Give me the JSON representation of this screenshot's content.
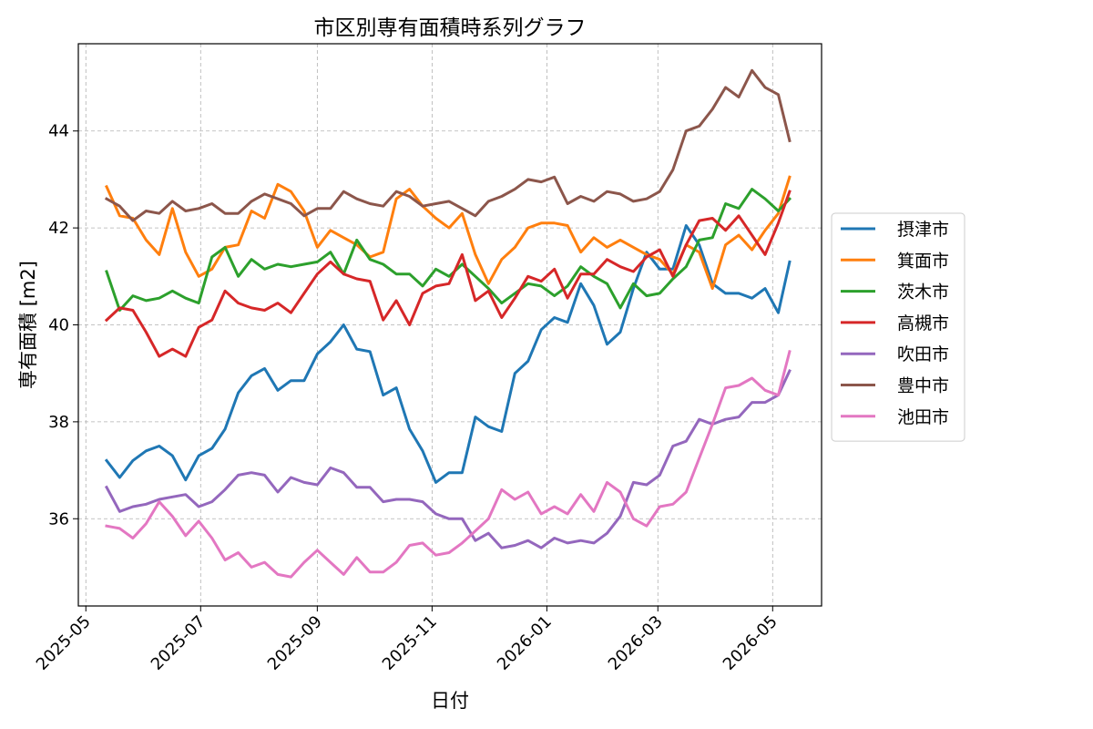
{
  "chart_data": {
    "type": "line",
    "title": "市区別専有面積時系列グラフ",
    "xlabel": "日付",
    "ylabel": "専有面積 [m2]",
    "xlim": [
      "2025-04-27",
      "2026-05-27"
    ],
    "ylim": [
      34.2,
      45.8
    ],
    "x_ticks": [
      "2025-05-01",
      "2025-07-01",
      "2025-09-01",
      "2025-11-01",
      "2026-01-01",
      "2026-03-01",
      "2026-05-01"
    ],
    "x_tick_labels": [
      "2025-05",
      "2025-07",
      "2025-09",
      "2025-11",
      "2026-01",
      "2026-03",
      "2026-05"
    ],
    "y_ticks": [
      36,
      38,
      40,
      42,
      44
    ],
    "y_tick_labels": [
      "36",
      "38",
      "40",
      "42",
      "44"
    ],
    "grid": true,
    "legend_position": "center-right-outside",
    "x_start": "2025-05-12",
    "x_step_days": 7,
    "x_end": "2026-05-10",
    "series": [
      {
        "name": "摂津市",
        "color": "#1f77b4",
        "values": [
          37.2,
          36.85,
          37.2,
          37.4,
          37.5,
          37.3,
          36.8,
          37.3,
          37.45,
          37.85,
          38.6,
          38.95,
          39.1,
          38.65,
          38.85,
          38.85,
          39.4,
          39.65,
          40.0,
          39.5,
          39.45,
          38.55,
          38.7,
          37.85,
          37.4,
          36.75,
          36.95,
          36.95,
          38.1,
          37.9,
          37.8,
          39.0,
          39.25,
          39.9,
          40.15,
          40.05,
          40.85,
          40.4,
          39.6,
          39.85,
          40.75,
          41.5,
          41.15,
          41.15,
          42.05,
          41.65,
          40.85,
          40.65,
          40.65,
          40.55,
          40.75,
          40.25,
          41.3
        ]
      },
      {
        "name": "箕面市",
        "color": "#ff7f0e",
        "values": [
          42.85,
          42.25,
          42.2,
          41.75,
          41.45,
          42.4,
          41.5,
          41.0,
          41.15,
          41.6,
          41.65,
          42.35,
          42.2,
          42.9,
          42.75,
          42.35,
          41.6,
          41.95,
          41.8,
          41.65,
          41.4,
          41.5,
          42.6,
          42.8,
          42.45,
          42.2,
          42.0,
          42.3,
          41.45,
          40.85,
          41.35,
          41.6,
          42.0,
          42.1,
          42.1,
          42.05,
          41.5,
          41.8,
          41.6,
          41.75,
          41.6,
          41.45,
          41.35,
          41.05,
          41.65,
          41.5,
          40.75,
          41.65,
          41.85,
          41.55,
          41.95,
          42.3,
          43.05
        ]
      },
      {
        "name": "茨木市",
        "color": "#2ca02c",
        "values": [
          41.1,
          40.3,
          40.6,
          40.5,
          40.55,
          40.7,
          40.55,
          40.45,
          41.4,
          41.6,
          41.0,
          41.35,
          41.15,
          41.25,
          41.2,
          41.25,
          41.3,
          41.5,
          41.05,
          41.75,
          41.35,
          41.25,
          41.05,
          41.05,
          40.8,
          41.15,
          41.0,
          41.25,
          41.0,
          40.75,
          40.45,
          40.65,
          40.85,
          40.8,
          40.6,
          40.8,
          41.2,
          41.0,
          40.85,
          40.35,
          40.85,
          40.6,
          40.65,
          40.95,
          41.2,
          41.75,
          41.8,
          42.5,
          42.4,
          42.8,
          42.6,
          42.35,
          42.6
        ]
      },
      {
        "name": "高槻市",
        "color": "#d62728",
        "values": [
          40.1,
          40.35,
          40.3,
          39.85,
          39.35,
          39.5,
          39.35,
          39.95,
          40.1,
          40.7,
          40.45,
          40.35,
          40.3,
          40.45,
          40.25,
          40.65,
          41.05,
          41.3,
          41.05,
          40.95,
          40.9,
          40.1,
          40.5,
          40.0,
          40.65,
          40.8,
          40.85,
          41.45,
          40.5,
          40.7,
          40.15,
          40.55,
          41.0,
          40.9,
          41.15,
          40.55,
          41.05,
          41.05,
          41.35,
          41.2,
          41.1,
          41.4,
          41.55,
          41.0,
          41.65,
          42.15,
          42.2,
          41.95,
          42.25,
          41.85,
          41.45,
          42.1,
          42.75
        ]
      },
      {
        "name": "吹田市",
        "color": "#9467bd",
        "values": [
          36.65,
          36.15,
          36.25,
          36.3,
          36.4,
          36.45,
          36.5,
          36.25,
          36.35,
          36.6,
          36.9,
          36.95,
          36.9,
          36.55,
          36.85,
          36.75,
          36.7,
          37.05,
          36.95,
          36.65,
          36.65,
          36.35,
          36.4,
          36.4,
          36.35,
          36.1,
          36.0,
          36.0,
          35.55,
          35.7,
          35.4,
          35.45,
          35.55,
          35.4,
          35.6,
          35.5,
          35.55,
          35.5,
          35.7,
          36.05,
          36.75,
          36.7,
          36.9,
          37.5,
          37.6,
          38.05,
          37.95,
          38.05,
          38.1,
          38.4,
          38.4,
          38.55,
          39.05
        ]
      },
      {
        "name": "豊中市",
        "color": "#8c564b",
        "values": [
          42.6,
          42.45,
          42.15,
          42.35,
          42.3,
          42.55,
          42.35,
          42.4,
          42.5,
          42.3,
          42.3,
          42.55,
          42.7,
          42.6,
          42.5,
          42.25,
          42.4,
          42.4,
          42.75,
          42.6,
          42.5,
          42.45,
          42.75,
          42.65,
          42.45,
          42.5,
          42.55,
          42.4,
          42.25,
          42.55,
          42.65,
          42.8,
          43.0,
          42.95,
          43.05,
          42.5,
          42.65,
          42.55,
          42.75,
          42.7,
          42.55,
          42.6,
          42.75,
          43.2,
          44.0,
          44.1,
          44.45,
          44.9,
          44.7,
          45.25,
          44.9,
          44.75,
          43.8
        ]
      },
      {
        "name": "池田市",
        "color": "#e377c2",
        "values": [
          35.85,
          35.8,
          35.6,
          35.9,
          36.35,
          36.05,
          35.65,
          35.95,
          35.6,
          35.15,
          35.3,
          35.0,
          35.1,
          34.85,
          34.8,
          35.1,
          35.35,
          35.1,
          34.85,
          35.2,
          34.9,
          34.9,
          35.1,
          35.45,
          35.5,
          35.25,
          35.3,
          35.5,
          35.75,
          36.0,
          36.6,
          36.4,
          36.55,
          36.1,
          36.25,
          36.1,
          36.5,
          36.15,
          36.75,
          36.55,
          36.0,
          35.85,
          36.25,
          36.3,
          36.55,
          37.25,
          37.95,
          38.7,
          38.75,
          38.9,
          38.65,
          38.55,
          39.45
        ]
      }
    ]
  }
}
